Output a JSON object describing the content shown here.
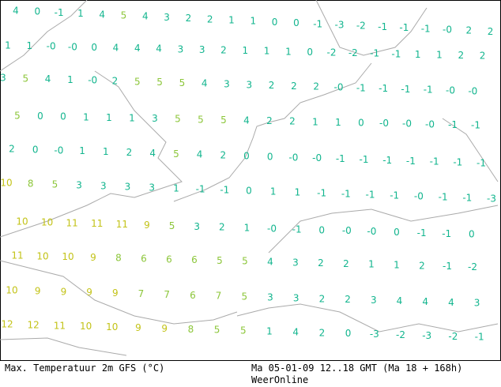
{
  "map": {
    "rows": [
      [
        "4",
        "0",
        "-1",
        "1",
        "4",
        "5",
        "4",
        "3",
        "2",
        "2",
        "1",
        "1",
        "0",
        "0",
        "-1",
        "-3",
        "-2",
        "-1",
        "-1",
        "-1",
        "-0",
        "2",
        "2"
      ],
      [
        "1",
        "1",
        "-0",
        "-0",
        "0",
        "4",
        "4",
        "4",
        "3",
        "3",
        "2",
        "1",
        "1",
        "1",
        "0",
        "-2",
        "-2",
        "-1",
        "-1",
        "1",
        "1",
        "2",
        "2"
      ],
      [
        "3",
        "5",
        "4",
        "1",
        "-0",
        "2",
        "5",
        "5",
        "5",
        "4",
        "3",
        "3",
        "2",
        "2",
        "2",
        "-0",
        "-1",
        "-1",
        "-1",
        "-1",
        "-0",
        "-0"
      ],
      [
        "5",
        "0",
        "0",
        "1",
        "1",
        "1",
        "3",
        "5",
        "5",
        "5",
        "4",
        "2",
        "2",
        "1",
        "1",
        "0",
        "-0",
        "-0",
        "-0",
        "-1",
        "-1"
      ],
      [
        "2",
        "0",
        "-0",
        "1",
        "1",
        "2",
        "4",
        "5",
        "4",
        "2",
        "0",
        "0",
        "-0",
        "-0",
        "-1",
        "-1",
        "-1",
        "-1",
        "-1",
        "-1",
        "-1"
      ],
      [
        "10",
        "8",
        "5",
        "3",
        "3",
        "3",
        "3",
        "1",
        "-1",
        "-1",
        "0",
        "1",
        "1",
        "-1",
        "-1",
        "-1",
        "-1",
        "-0",
        "-1",
        "-1",
        "-3"
      ],
      [
        "10",
        "10",
        "11",
        "11",
        "11",
        "9",
        "5",
        "3",
        "2",
        "1",
        "-0",
        "-1",
        "0",
        "-0",
        "-0",
        "0",
        "-1",
        "-1",
        "0"
      ],
      [
        "11",
        "10",
        "10",
        "9",
        "8",
        "6",
        "6",
        "6",
        "5",
        "5",
        "4",
        "3",
        "2",
        "2",
        "1",
        "1",
        "2",
        "-1",
        "-2"
      ],
      [
        "10",
        "9",
        "9",
        "9",
        "9",
        "7",
        "7",
        "6",
        "7",
        "5",
        "3",
        "3",
        "2",
        "2",
        "3",
        "4",
        "4",
        "4",
        "3"
      ],
      [
        "12",
        "12",
        "11",
        "10",
        "10",
        "9",
        "9",
        "8",
        "5",
        "5",
        "1",
        "4",
        "2",
        "0",
        "-3",
        "-2",
        "-3",
        "-2",
        "-1"
      ]
    ]
  },
  "footer": {
    "title": "Max. Temperatuur 2m GFS (°C)",
    "time": "Ma 05-01-09 12..18 GMT (Ma 18 + 168h)",
    "source": "WeerOnline"
  }
}
